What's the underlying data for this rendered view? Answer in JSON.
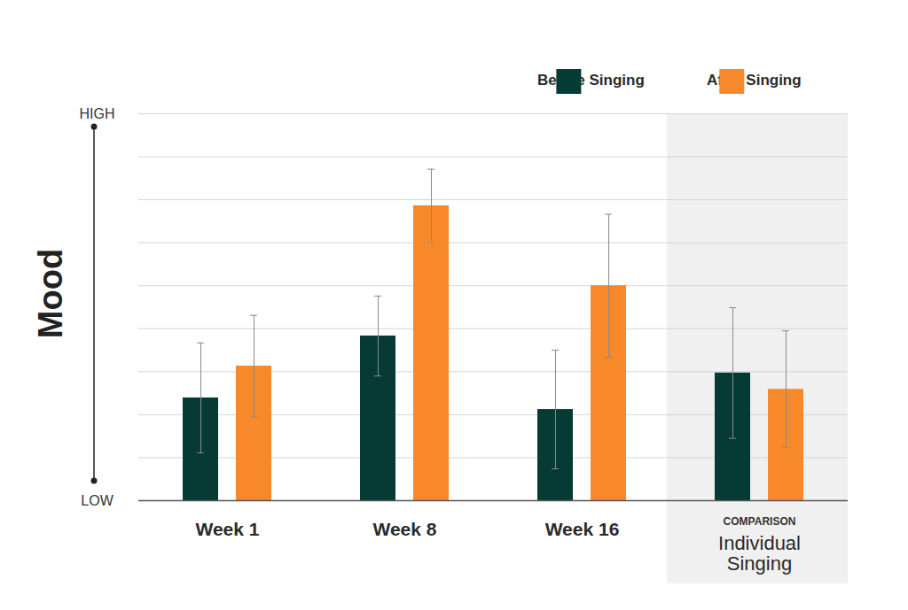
{
  "chart_data": {
    "type": "bar",
    "ylabel": "Mood",
    "categories": [
      "Week 1",
      "Week 8",
      "Week 16",
      "Individual Singing"
    ],
    "series": [
      {
        "name": "Before Singing",
        "color": "#063a34",
        "values": [
          2.39,
          3.83,
          2.12,
          2.97
        ],
        "errors": [
          1.28,
          0.93,
          1.38,
          1.52
        ]
      },
      {
        "name": "After Singing",
        "color": "#f7892a",
        "values": [
          3.13,
          6.86,
          5.0,
          2.59
        ],
        "errors": [
          1.18,
          0.85,
          1.66,
          1.36
        ]
      }
    ],
    "ylim": [
      0,
      9
    ],
    "yticks": [
      {
        "value": 0,
        "label": "LOW"
      },
      {
        "value": 1,
        "label": null
      },
      {
        "value": 2,
        "label": null
      },
      {
        "value": 3,
        "label": null
      },
      {
        "value": 4,
        "label": null
      },
      {
        "value": 5,
        "label": null
      },
      {
        "value": 6,
        "label": null
      },
      {
        "value": 7,
        "label": null
      },
      {
        "value": 8,
        "label": null
      },
      {
        "value": 9,
        "label": "HIGH"
      }
    ],
    "grid": true,
    "legend": "top-right",
    "annotations": [
      {
        "text": "COMPARISON",
        "category": "Individual Singing"
      }
    ]
  }
}
